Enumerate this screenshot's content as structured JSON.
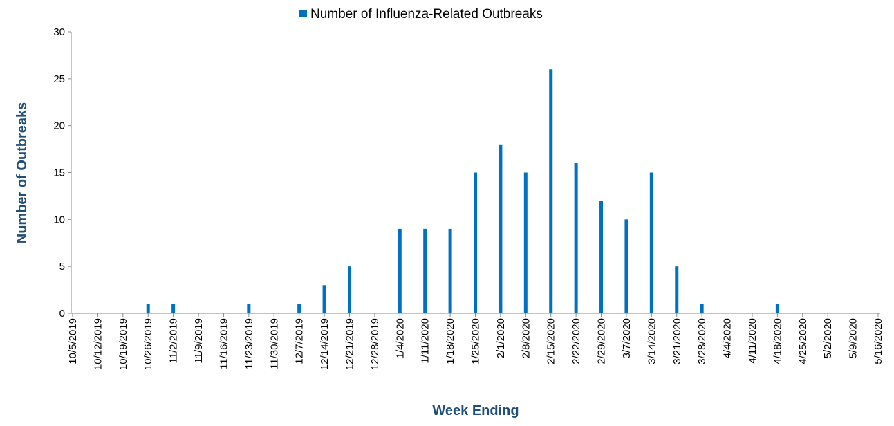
{
  "chart_data": {
    "type": "bar",
    "categories": [
      "10/5/2019",
      "10/12/2019",
      "10/19/2019",
      "10/26/2019",
      "11/2/2019",
      "11/9/2019",
      "11/16/2019",
      "11/23/2019",
      "11/30/2019",
      "12/7/2019",
      "12/14/2019",
      "12/21/2019",
      "12/28/2019",
      "1/4/2020",
      "1/11/2020",
      "1/18/2020",
      "1/25/2020",
      "2/1/2020",
      "2/8/2020",
      "2/15/2020",
      "2/22/2020",
      "2/29/2020",
      "3/7/2020",
      "3/14/2020",
      "3/21/2020",
      "3/28/2020",
      "4/4/2020",
      "4/11/2020",
      "4/18/2020",
      "4/25/2020",
      "5/2/2020",
      "5/9/2020",
      "5/16/2020"
    ],
    "series": [
      {
        "name": "Number of Influenza-Related Outbreaks",
        "color": "#0070c0",
        "values": [
          0,
          0,
          0,
          1,
          1,
          0,
          0,
          1,
          0,
          1,
          3,
          5,
          0,
          9,
          9,
          9,
          15,
          18,
          15,
          26,
          16,
          12,
          10,
          15,
          5,
          1,
          0,
          0,
          1,
          0,
          0,
          0,
          0
        ]
      }
    ],
    "x_label": "Week Ending",
    "y_label": "Number of Outbreaks",
    "ylim": [
      0,
      30
    ],
    "yticks": [
      0,
      5,
      10,
      15,
      20,
      25,
      30
    ],
    "legend": "top"
  }
}
